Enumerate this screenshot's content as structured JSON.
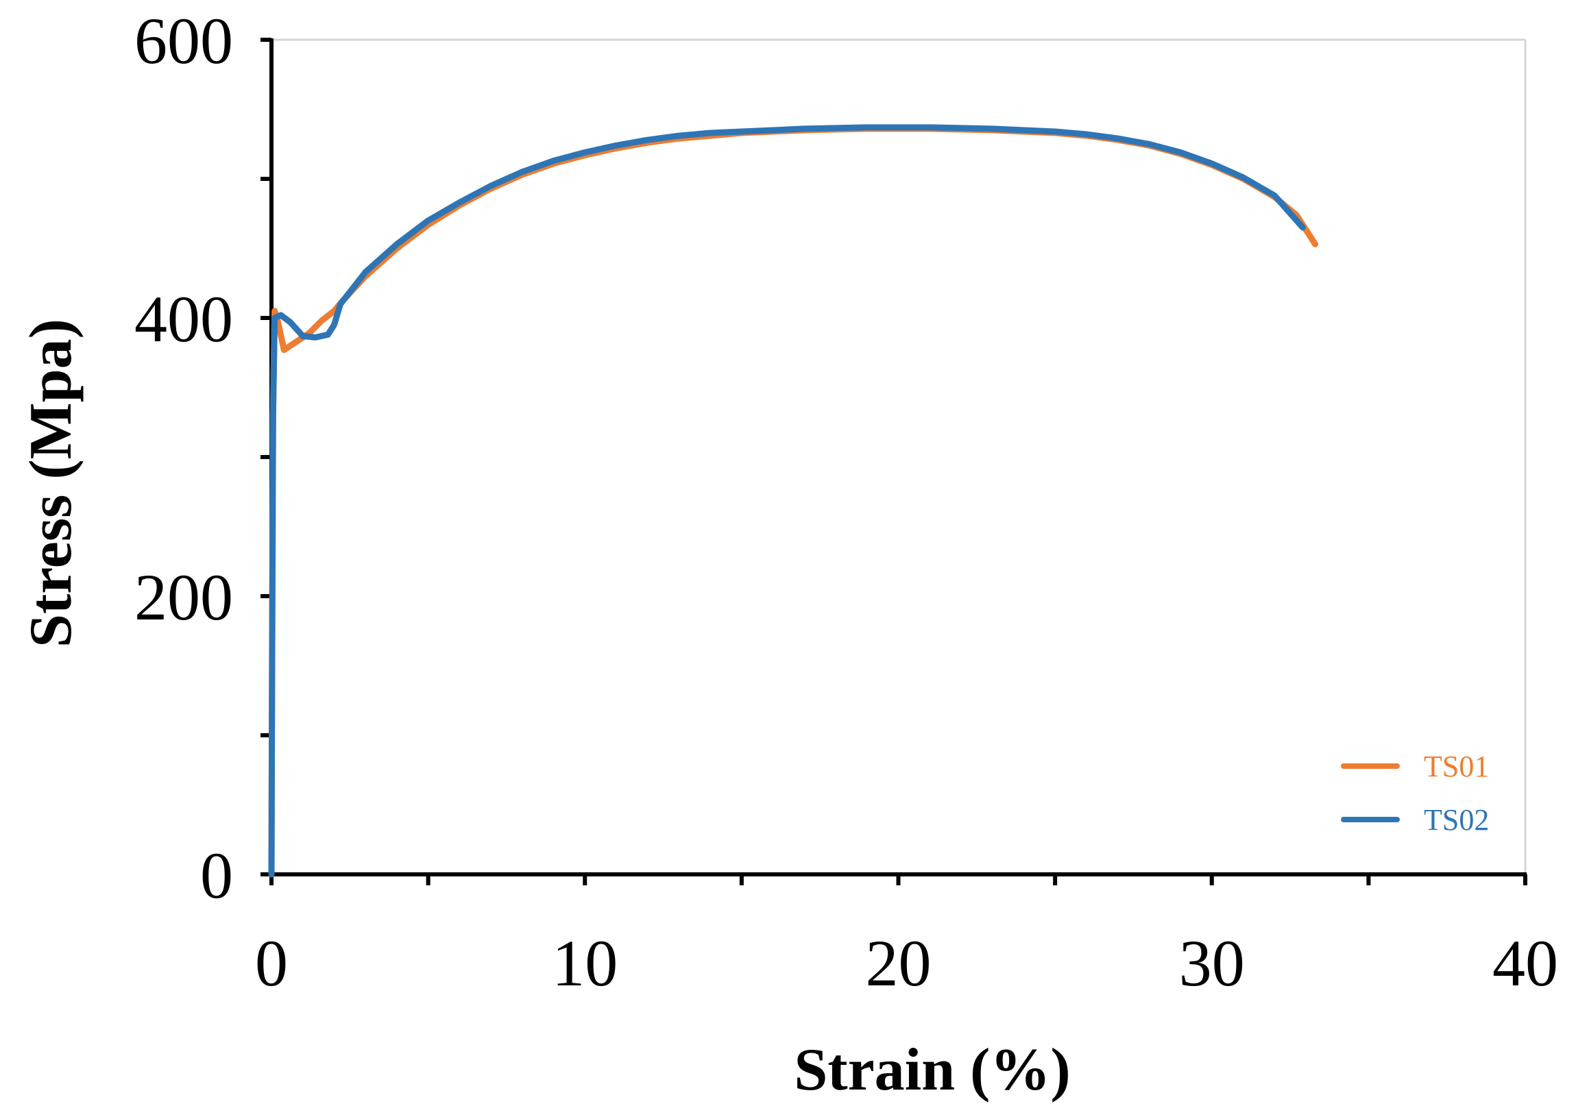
{
  "chart_data": {
    "type": "line",
    "xlabel": "Strain (%)",
    "ylabel": "Stress (Mpa)",
    "xlim": [
      0,
      40
    ],
    "ylim": [
      0,
      600
    ],
    "x_ticks": [
      0,
      10,
      20,
      30,
      40
    ],
    "y_ticks": [
      0,
      200,
      400,
      600
    ],
    "x_tick_labels": [
      "0",
      "10",
      "20",
      "30",
      "40"
    ],
    "y_tick_labels": [
      "0",
      "200",
      "400",
      "600"
    ],
    "grid": false,
    "legend_position": "bottom-right",
    "series": [
      {
        "name": "TS01",
        "color": "#ED7D31",
        "points": [
          [
            0,
            0
          ],
          [
            0.02,
            150
          ],
          [
            0.05,
            330
          ],
          [
            0.1,
            405
          ],
          [
            0.2,
            398
          ],
          [
            0.4,
            377
          ],
          [
            0.8,
            383
          ],
          [
            1.2,
            389
          ],
          [
            1.6,
            398
          ],
          [
            2.0,
            405
          ],
          [
            2.3,
            413
          ],
          [
            3,
            430
          ],
          [
            4,
            450
          ],
          [
            5,
            467
          ],
          [
            6,
            481
          ],
          [
            7,
            493
          ],
          [
            8,
            503
          ],
          [
            9,
            511
          ],
          [
            10,
            517
          ],
          [
            11,
            522
          ],
          [
            12,
            526
          ],
          [
            13,
            529
          ],
          [
            14,
            531
          ],
          [
            15,
            533
          ],
          [
            16,
            534
          ],
          [
            17,
            535
          ],
          [
            18,
            535.5
          ],
          [
            19,
            536
          ],
          [
            20,
            536
          ],
          [
            21,
            536
          ],
          [
            22,
            535.5
          ],
          [
            23,
            535
          ],
          [
            24,
            534
          ],
          [
            25,
            533
          ],
          [
            26,
            531
          ],
          [
            27,
            528
          ],
          [
            28,
            524
          ],
          [
            29,
            518
          ],
          [
            30,
            510
          ],
          [
            31,
            500
          ],
          [
            32,
            487
          ],
          [
            32.7,
            474
          ],
          [
            33.3,
            453
          ]
        ]
      },
      {
        "name": "TS02",
        "color": "#2E75B6",
        "points": [
          [
            0,
            0
          ],
          [
            0.02,
            150
          ],
          [
            0.05,
            330
          ],
          [
            0.1,
            400
          ],
          [
            0.3,
            402
          ],
          [
            0.6,
            397
          ],
          [
            1.0,
            387
          ],
          [
            1.4,
            386
          ],
          [
            1.8,
            388
          ],
          [
            2.0,
            395
          ],
          [
            2.2,
            410
          ],
          [
            3,
            433
          ],
          [
            4,
            453
          ],
          [
            5,
            470
          ],
          [
            6,
            483
          ],
          [
            7,
            495
          ],
          [
            8,
            505
          ],
          [
            9,
            513
          ],
          [
            10,
            519
          ],
          [
            11,
            524
          ],
          [
            12,
            528
          ],
          [
            13,
            531
          ],
          [
            14,
            533
          ],
          [
            15,
            534
          ],
          [
            16,
            535
          ],
          [
            17,
            536
          ],
          [
            18,
            536.5
          ],
          [
            19,
            537
          ],
          [
            20,
            537
          ],
          [
            21,
            537
          ],
          [
            22,
            536.5
          ],
          [
            23,
            536
          ],
          [
            24,
            535
          ],
          [
            25,
            534
          ],
          [
            26,
            532
          ],
          [
            27,
            529
          ],
          [
            28,
            525
          ],
          [
            29,
            519
          ],
          [
            30,
            511
          ],
          [
            31,
            501
          ],
          [
            32,
            488
          ],
          [
            32.9,
            465
          ]
        ]
      }
    ]
  }
}
